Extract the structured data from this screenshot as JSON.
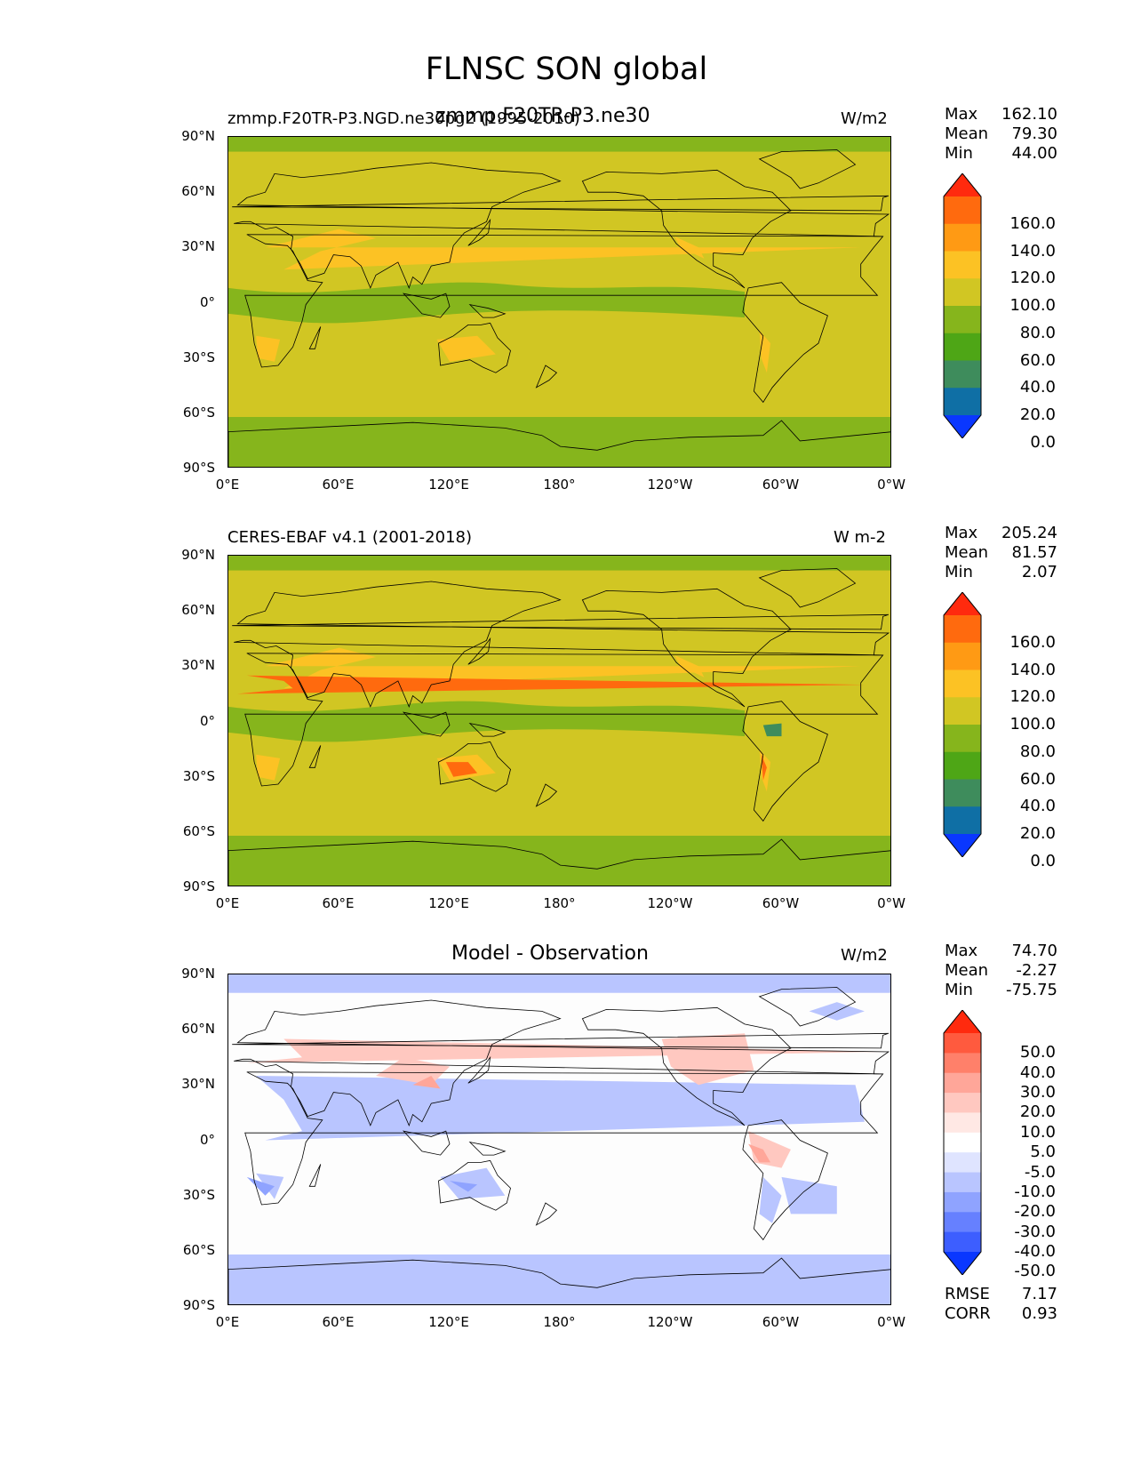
{
  "figure_title": "FLNSC SON global",
  "x_ticks": [
    "0°E",
    "60°E",
    "120°E",
    "180°",
    "120°W",
    "60°W",
    "0°W"
  ],
  "y_ticks": [
    "90°N",
    "60°N",
    "30°N",
    "0°",
    "30°S",
    "60°S",
    "90°S"
  ],
  "panels": [
    {
      "left_title": "zmmp.F20TR-P3.NGD.ne30pg2 (1995-2010)",
      "overlay_title": "zmmp.F20TR-P3.ne30",
      "units": "W/m2",
      "stats": {
        "max_label": "Max",
        "max": "162.10",
        "mean_label": "Mean",
        "mean": "79.30",
        "min_label": "Min",
        "min": "44.00"
      },
      "colorbar": {
        "labels": [
          "160.0",
          "140.0",
          "120.0",
          "100.0",
          "80.0",
          "60.0",
          "40.0",
          "20.0",
          "0.0"
        ],
        "colors": [
          "#ff2a0e",
          "#ff6a0e",
          "#ff9a14",
          "#fcc224",
          "#d1c623",
          "#86b51c",
          "#4ea616",
          "#3e8c5c",
          "#0f6fa5",
          "#0a37ff"
        ]
      }
    },
    {
      "left_title": "CERES-EBAF v4.1 (2001-2018)",
      "overlay_title": "",
      "units": "W m-2",
      "stats": {
        "max_label": "Max",
        "max": "205.24",
        "mean_label": "Mean",
        "mean": "81.57",
        "min_label": "Min",
        "min": "2.07"
      },
      "colorbar": {
        "labels": [
          "160.0",
          "140.0",
          "120.0",
          "100.0",
          "80.0",
          "60.0",
          "40.0",
          "20.0",
          "0.0"
        ],
        "colors": [
          "#ff2a0e",
          "#ff6a0e",
          "#ff9a14",
          "#fcc224",
          "#d1c623",
          "#86b51c",
          "#4ea616",
          "#3e8c5c",
          "#0f6fa5",
          "#0a37ff"
        ]
      }
    },
    {
      "left_title": "",
      "overlay_title": "Model - Observation",
      "units": "W/m2",
      "stats": {
        "max_label": "Max",
        "max": "74.70",
        "mean_label": "Mean",
        "mean": "-2.27",
        "min_label": "Min",
        "min": "-75.75"
      },
      "colorbar": {
        "labels": [
          "50.0",
          "40.0",
          "30.0",
          "20.0",
          "10.0",
          "5.0",
          "-5.0",
          "-10.0",
          "-20.0",
          "-30.0",
          "-40.0",
          "-50.0"
        ],
        "colors": [
          "#ff2a0e",
          "#ff5a3e",
          "#ff806a",
          "#ffa699",
          "#ffc8c0",
          "#ffe8e4",
          "#ffffff",
          "#dfe4ff",
          "#b9c5ff",
          "#8fa3ff",
          "#6680ff",
          "#3d5eff",
          "#0a37ff"
        ]
      },
      "rmse_label": "RMSE",
      "rmse": "7.17",
      "corr_label": "CORR",
      "corr": "0.93"
    }
  ],
  "legend": {
    "panel_names": [
      "model-map",
      "observation-map",
      "difference-map"
    ],
    "base_colors": [
      "#d1c623",
      "#d1c623",
      "#fdfdfd"
    ]
  }
}
